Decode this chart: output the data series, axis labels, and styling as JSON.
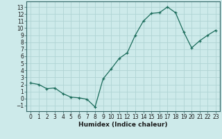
{
  "x": [
    0,
    1,
    2,
    3,
    4,
    5,
    6,
    7,
    8,
    9,
    10,
    11,
    12,
    13,
    14,
    15,
    16,
    17,
    18,
    19,
    20,
    21,
    22,
    23
  ],
  "y": [
    2.2,
    2.0,
    1.4,
    1.5,
    0.7,
    0.2,
    0.1,
    -0.1,
    -1.2,
    2.8,
    4.2,
    5.7,
    6.5,
    9.0,
    11.0,
    12.1,
    12.2,
    13.0,
    12.2,
    9.5,
    7.2,
    8.2,
    9.0,
    9.7
  ],
  "line_color": "#1a6b5a",
  "marker": "+",
  "marker_size": 3,
  "bg_color": "#cdeaea",
  "grid_color": "#b0d4d4",
  "xlabel": "Humidex (Indice chaleur)",
  "xlim": [
    -0.5,
    23.5
  ],
  "ylim": [
    -1.8,
    13.8
  ],
  "yticks": [
    -1,
    0,
    1,
    2,
    3,
    4,
    5,
    6,
    7,
    8,
    9,
    10,
    11,
    12,
    13
  ],
  "xticks": [
    0,
    1,
    2,
    3,
    4,
    5,
    6,
    7,
    8,
    9,
    10,
    11,
    12,
    13,
    14,
    15,
    16,
    17,
    18,
    19,
    20,
    21,
    22,
    23
  ],
  "tick_label_fontsize": 5.5,
  "xlabel_fontsize": 6.5,
  "linewidth": 0.9,
  "markeredgewidth": 0.9
}
